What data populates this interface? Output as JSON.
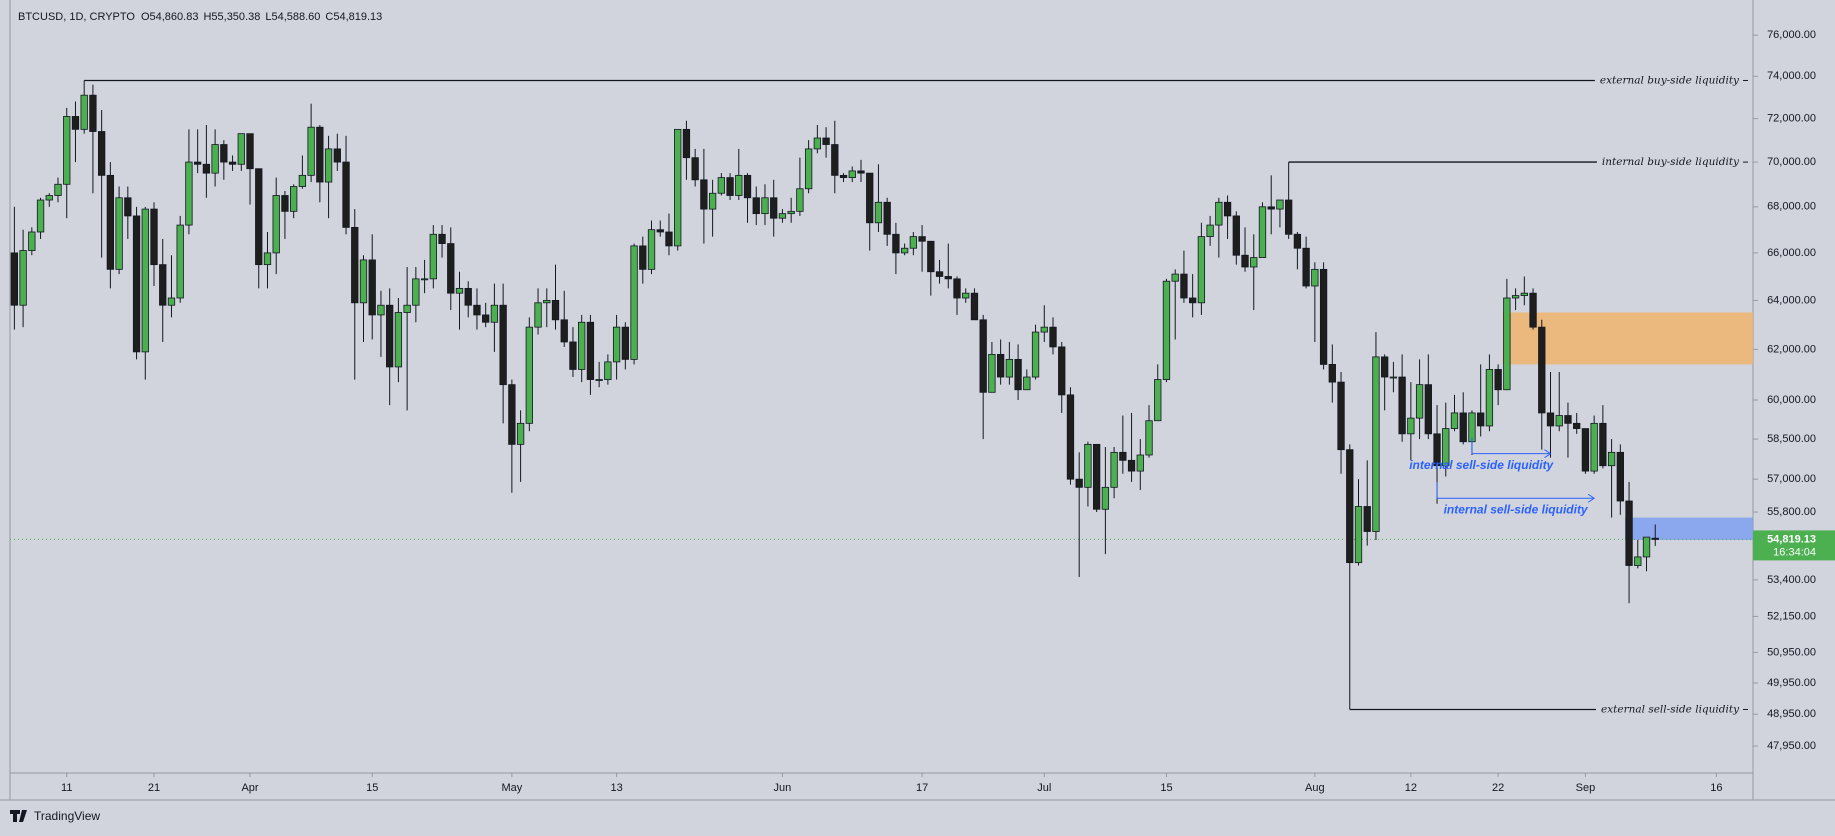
{
  "chart_data": {
    "type": "candlestick",
    "header": {
      "symbol": "BTCUSD, 1D, CRYPTO",
      "ohlc": [
        {
          "value": 54860.83,
          "label": "O54,860.83"
        },
        {
          "value": 55350.38,
          "label": "H55,350.38"
        },
        {
          "value": 54588.6,
          "label": "L54,588.60"
        },
        {
          "value": 54819.13,
          "label": "C54,819.13"
        }
      ]
    },
    "log": true,
    "grid": false,
    "up_color": "#4caf50",
    "down_color": "#1e1e1e",
    "ylim": [
      47120,
      77750
    ],
    "yticks": [
      {
        "value": 76000,
        "label": "76,000.00"
      },
      {
        "value": 74000,
        "label": "74,000.00"
      },
      {
        "value": 72000,
        "label": "72,000.00"
      },
      {
        "value": 70000,
        "label": "70,000.00"
      },
      {
        "value": 68000,
        "label": "68,000.00"
      },
      {
        "value": 66000,
        "label": "66,000.00"
      },
      {
        "value": 64000,
        "label": "64,000.00"
      },
      {
        "value": 62000,
        "label": "62,000.00"
      },
      {
        "value": 60000,
        "label": "60,000.00"
      },
      {
        "value": 58500,
        "label": "58,500.00"
      },
      {
        "value": 57000,
        "label": "57,000.00"
      },
      {
        "value": 55800,
        "label": "55,800.00"
      },
      {
        "value": 53400,
        "label": "53,400.00"
      },
      {
        "value": 52150,
        "label": "52,150.00"
      },
      {
        "value": 50950,
        "label": "50,950.00"
      },
      {
        "value": 49950,
        "label": "49,950.00"
      },
      {
        "value": 48950,
        "label": "48,950.00"
      },
      {
        "value": 47950,
        "label": "47,950.00"
      }
    ],
    "xlim": [
      -0.5,
      199.2
    ],
    "xticks": [
      {
        "value": 6,
        "label": "11"
      },
      {
        "value": 16,
        "label": "21"
      },
      {
        "value": 27,
        "label": "Apr"
      },
      {
        "value": 41,
        "label": "15"
      },
      {
        "value": 57,
        "label": "May"
      },
      {
        "value": 69,
        "label": "13"
      },
      {
        "value": 88,
        "label": "Jun"
      },
      {
        "value": 104,
        "label": "17"
      },
      {
        "value": 118,
        "label": "Jul"
      },
      {
        "value": 132,
        "label": "15"
      },
      {
        "value": 149,
        "label": "Aug"
      },
      {
        "value": 160,
        "label": "12"
      },
      {
        "value": 170,
        "label": "22"
      },
      {
        "value": 180,
        "label": "Sep"
      },
      {
        "value": 195,
        "label": "16"
      }
    ],
    "candles": [
      [
        66000,
        68000,
        62800,
        63800
      ],
      [
        63800,
        67000,
        62900,
        66100
      ],
      [
        66100,
        67100,
        65900,
        66900
      ],
      [
        66900,
        68400,
        66600,
        68300
      ],
      [
        68300,
        68600,
        68000,
        68500
      ],
      [
        68500,
        69300,
        68200,
        69000
      ],
      [
        69000,
        72500,
        67500,
        72100
      ],
      [
        72100,
        72800,
        70000,
        71500
      ],
      [
        71500,
        73800,
        71300,
        73100
      ],
      [
        73100,
        73600,
        68600,
        71400
      ],
      [
        71400,
        72400,
        65800,
        69400
      ],
      [
        69400,
        70000,
        64500,
        65300
      ],
      [
        65300,
        68900,
        65100,
        68400
      ],
      [
        68400,
        68900,
        66600,
        67600
      ],
      [
        67600,
        68000,
        61600,
        61900
      ],
      [
        61900,
        68000,
        60800,
        67900
      ],
      [
        67900,
        68200,
        64600,
        65500
      ],
      [
        65500,
        66600,
        62300,
        63800
      ],
      [
        63800,
        65900,
        63300,
        64100
      ],
      [
        64100,
        67600,
        63900,
        67200
      ],
      [
        67200,
        71500,
        66800,
        70000
      ],
      [
        70000,
        71500,
        69500,
        69900
      ],
      [
        69900,
        71700,
        68400,
        69500
      ],
      [
        69500,
        71500,
        68900,
        70800
      ],
      [
        70800,
        71000,
        69200,
        70000
      ],
      [
        70000,
        70300,
        69600,
        69900
      ],
      [
        69900,
        71300,
        69600,
        71300
      ],
      [
        71300,
        71300,
        68100,
        69700
      ],
      [
        69700,
        69700,
        64500,
        65500
      ],
      [
        65500,
        66900,
        64500,
        66000
      ],
      [
        66000,
        69300,
        65100,
        68500
      ],
      [
        68500,
        68700,
        66600,
        67800
      ],
      [
        67800,
        69000,
        67500,
        68900
      ],
      [
        68900,
        70300,
        68800,
        69400
      ],
      [
        69400,
        72700,
        69100,
        71600
      ],
      [
        71600,
        71700,
        68200,
        69100
      ],
      [
        69100,
        71200,
        67500,
        70600
      ],
      [
        70600,
        71300,
        69600,
        70000
      ],
      [
        70000,
        71200,
        66800,
        67100
      ],
      [
        67100,
        67900,
        60800,
        63900
      ],
      [
        63900,
        65900,
        62300,
        65700
      ],
      [
        65700,
        66800,
        62400,
        63400
      ],
      [
        63400,
        64400,
        61700,
        63800
      ],
      [
        63800,
        64500,
        59800,
        61300
      ],
      [
        61300,
        64100,
        60700,
        63500
      ],
      [
        63500,
        65400,
        59600,
        63800
      ],
      [
        63800,
        65400,
        63100,
        64900
      ],
      [
        64900,
        65700,
        64300,
        64900
      ],
      [
        64900,
        67200,
        64500,
        66800
      ],
      [
        66800,
        67200,
        65800,
        66400
      ],
      [
        66400,
        67100,
        63600,
        64300
      ],
      [
        64300,
        65200,
        62800,
        64500
      ],
      [
        64500,
        64800,
        63300,
        63800
      ],
      [
        63800,
        64500,
        62800,
        63400
      ],
      [
        63400,
        63900,
        62900,
        63100
      ],
      [
        63100,
        64700,
        61900,
        63800
      ],
      [
        63800,
        64700,
        59100,
        60600
      ],
      [
        60600,
        60800,
        56500,
        58300
      ],
      [
        58300,
        59600,
        56900,
        59100
      ],
      [
        59100,
        63300,
        58800,
        62900
      ],
      [
        62900,
        64500,
        62600,
        63900
      ],
      [
        63900,
        64500,
        62900,
        64000
      ],
      [
        64000,
        65500,
        62800,
        63200
      ],
      [
        63200,
        64400,
        62100,
        62300
      ],
      [
        62300,
        62900,
        60900,
        61200
      ],
      [
        61200,
        63400,
        60700,
        63100
      ],
      [
        63100,
        63400,
        60200,
        60800
      ],
      [
        60800,
        61500,
        60500,
        60800
      ],
      [
        60800,
        61800,
        60600,
        61500
      ],
      [
        61500,
        63400,
        60800,
        62900
      ],
      [
        62900,
        63100,
        61200,
        61600
      ],
      [
        61600,
        66400,
        61400,
        66300
      ],
      [
        66300,
        66700,
        64700,
        65300
      ],
      [
        65300,
        67400,
        65100,
        67000
      ],
      [
        67000,
        67400,
        66700,
        66900
      ],
      [
        66900,
        67700,
        65900,
        66300
      ],
      [
        66300,
        71500,
        66100,
        71500
      ],
      [
        71500,
        71900,
        69200,
        70200
      ],
      [
        70200,
        70600,
        68900,
        69200
      ],
      [
        69200,
        70600,
        66400,
        67900
      ],
      [
        67900,
        69200,
        66700,
        68600
      ],
      [
        68600,
        69500,
        68500,
        69300
      ],
      [
        69300,
        69500,
        68300,
        68500
      ],
      [
        68500,
        70600,
        68300,
        69400
      ],
      [
        69400,
        69500,
        67300,
        68400
      ],
      [
        68400,
        68900,
        67200,
        67700
      ],
      [
        67700,
        69000,
        67200,
        68400
      ],
      [
        68400,
        69200,
        66700,
        67500
      ],
      [
        67500,
        67900,
        67300,
        67700
      ],
      [
        67700,
        68400,
        67300,
        67800
      ],
      [
        67800,
        70200,
        67600,
        68800
      ],
      [
        68800,
        71000,
        68600,
        70600
      ],
      [
        70600,
        71700,
        70400,
        71100
      ],
      [
        71100,
        71600,
        70200,
        70800
      ],
      [
        70800,
        71900,
        68600,
        69400
      ],
      [
        69400,
        69500,
        69100,
        69300
      ],
      [
        69300,
        69800,
        69100,
        69600
      ],
      [
        69600,
        70100,
        69100,
        69500
      ],
      [
        69500,
        69500,
        66100,
        67300
      ],
      [
        67300,
        69900,
        66900,
        68200
      ],
      [
        68200,
        68400,
        66300,
        66800
      ],
      [
        66800,
        67300,
        65100,
        66000
      ],
      [
        66000,
        66400,
        65900,
        66200
      ],
      [
        66200,
        66900,
        65900,
        66700
      ],
      [
        66700,
        67200,
        65200,
        66500
      ],
      [
        66500,
        66500,
        64200,
        65200
      ],
      [
        65200,
        65700,
        64700,
        65000
      ],
      [
        65000,
        66400,
        64500,
        64900
      ],
      [
        64900,
        65000,
        63400,
        64100
      ],
      [
        64100,
        64500,
        63900,
        64300
      ],
      [
        64300,
        64500,
        63200,
        63200
      ],
      [
        63200,
        63400,
        58500,
        60300
      ],
      [
        60300,
        62300,
        60300,
        61800
      ],
      [
        61800,
        62400,
        60600,
        60900
      ],
      [
        60900,
        62300,
        60600,
        61600
      ],
      [
        61600,
        62200,
        60000,
        60400
      ],
      [
        60400,
        61200,
        60400,
        60900
      ],
      [
        60900,
        63000,
        60800,
        62700
      ],
      [
        62700,
        63800,
        62300,
        62900
      ],
      [
        62900,
        63300,
        61800,
        62100
      ],
      [
        62100,
        62300,
        59500,
        60200
      ],
      [
        60200,
        60500,
        56800,
        57000
      ],
      [
        57000,
        58000,
        53500,
        56700
      ],
      [
        56700,
        58400,
        56000,
        58300
      ],
      [
        58300,
        58300,
        55800,
        55900
      ],
      [
        55900,
        58200,
        54300,
        56700
      ],
      [
        56700,
        58200,
        56300,
        58000
      ],
      [
        58000,
        59400,
        57200,
        57700
      ],
      [
        57700,
        59500,
        56900,
        57300
      ],
      [
        57300,
        58500,
        56600,
        57900
      ],
      [
        57900,
        59800,
        57800,
        59200
      ],
      [
        59200,
        61400,
        59200,
        60800
      ],
      [
        60800,
        64900,
        60700,
        64800
      ],
      [
        64800,
        65300,
        62400,
        65100
      ],
      [
        65100,
        66100,
        63900,
        64100
      ],
      [
        64100,
        65100,
        63300,
        63900
      ],
      [
        63900,
        67300,
        63400,
        66700
      ],
      [
        66700,
        67600,
        66300,
        67200
      ],
      [
        67200,
        68400,
        65800,
        68200
      ],
      [
        68200,
        68500,
        66600,
        67600
      ],
      [
        67600,
        67800,
        65500,
        65900
      ],
      [
        65900,
        67100,
        65200,
        65400
      ],
      [
        65400,
        66800,
        63600,
        65800
      ],
      [
        65800,
        68200,
        65800,
        68000
      ],
      [
        68000,
        69400,
        66800,
        67900
      ],
      [
        67900,
        68300,
        67100,
        68300
      ],
      [
        68300,
        70000,
        66600,
        66800
      ],
      [
        66800,
        66900,
        65300,
        66200
      ],
      [
        66200,
        66700,
        64500,
        64600
      ],
      [
        64600,
        65600,
        62300,
        65300
      ],
      [
        65300,
        65600,
        61200,
        61400
      ],
      [
        61400,
        62200,
        59900,
        60700
      ],
      [
        60700,
        61100,
        57200,
        58100
      ],
      [
        58100,
        58300,
        49100,
        54000
      ],
      [
        54000,
        57000,
        53900,
        56000
      ],
      [
        56000,
        57700,
        54600,
        55100
      ],
      [
        55100,
        62700,
        54800,
        61700
      ],
      [
        61700,
        61800,
        59600,
        60900
      ],
      [
        60900,
        61500,
        60300,
        60900
      ],
      [
        60900,
        61800,
        58400,
        58700
      ],
      [
        58700,
        60700,
        57700,
        59300
      ],
      [
        59300,
        61600,
        58500,
        60600
      ],
      [
        60600,
        61800,
        58500,
        58700
      ],
      [
        58700,
        59800,
        56100,
        57500
      ],
      [
        57500,
        59900,
        57100,
        58900
      ],
      [
        58900,
        60200,
        58800,
        59500
      ],
      [
        59500,
        60300,
        58300,
        58400
      ],
      [
        58400,
        59600,
        57900,
        59500
      ],
      [
        59500,
        61400,
        58600,
        59000
      ],
      [
        59000,
        61800,
        58800,
        61200
      ],
      [
        61200,
        61400,
        59800,
        60400
      ],
      [
        60400,
        64900,
        60400,
        64100
      ],
      [
        64100,
        64500,
        63600,
        64200
      ],
      [
        64200,
        65000,
        63800,
        64300
      ],
      [
        64300,
        64500,
        62800,
        62900
      ],
      [
        62900,
        63200,
        58100,
        59500
      ],
      [
        59500,
        61100,
        57800,
        59000
      ],
      [
        59000,
        61100,
        58800,
        59400
      ],
      [
        59400,
        59900,
        57800,
        59100
      ],
      [
        59100,
        59500,
        58700,
        58900
      ],
      [
        58900,
        58900,
        57200,
        57300
      ],
      [
        57300,
        59400,
        57200,
        59100
      ],
      [
        59100,
        59800,
        57400,
        57500
      ],
      [
        57500,
        58500,
        55600,
        58000
      ],
      [
        58000,
        58300,
        55700,
        56200
      ],
      [
        56200,
        56900,
        52600,
        53900
      ],
      [
        53900,
        54800,
        53800,
        54200
      ],
      [
        54200,
        54900,
        53700,
        54900
      ],
      [
        54860.83,
        55350.38,
        54588.6,
        54819.13
      ]
    ],
    "levels": [
      {
        "label": "external buy-side liquidity",
        "value": 73800,
        "from": 8
      },
      {
        "label": "internal buy-side liquidity",
        "value": 70000,
        "from": 146
      },
      {
        "label": "external sell-side liquidity",
        "value": 49100,
        "from": 153
      }
    ],
    "arrows": [
      {
        "label": "internal sell-side liquidity",
        "value": 57950,
        "from": 167,
        "to": 176,
        "color": "#2962ff"
      },
      {
        "label": "internal sell-side liquidity",
        "value": 56300,
        "from": 163,
        "to": 181,
        "color": "#2962ff"
      }
    ],
    "zones": [
      {
        "low": 61400,
        "high": 63500,
        "from": 171,
        "color": "#f0b46c"
      },
      {
        "low": 54800,
        "high": 55600,
        "from": 185,
        "color": "#7f9ff0"
      }
    ],
    "last_price": {
      "value": 54819.13,
      "label": "54,819.13",
      "color": "#4caf50"
    },
    "countdown": "16:34:04"
  },
  "footer": {
    "brand": "TradingView"
  }
}
